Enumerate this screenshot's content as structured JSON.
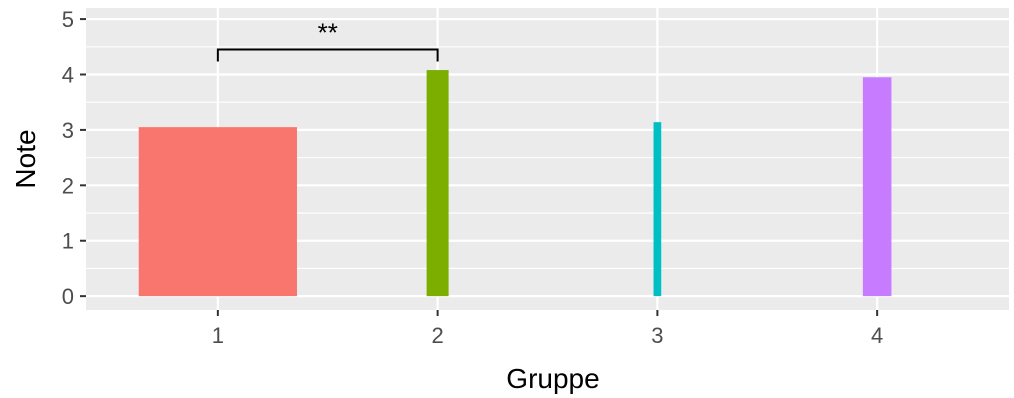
{
  "chart_data": {
    "type": "bar",
    "categories": [
      "1",
      "2",
      "3",
      "4"
    ],
    "values": [
      3.05,
      4.08,
      3.14,
      3.95
    ],
    "bar_width_fraction": [
      0.72,
      0.1,
      0.035,
      0.13
    ],
    "colors": [
      "#F8766D",
      "#7CAE00",
      "#00BFC4",
      "#C77CFF"
    ],
    "xlabel": "Gruppe",
    "ylabel": "Note",
    "yticks": [
      "0",
      "1",
      "2",
      "3",
      "4",
      "5"
    ],
    "ylim": [
      -0.25,
      5.2
    ],
    "grid": true,
    "legend": "none",
    "panel_background": "#EBEBEB",
    "grid_color": "#FFFFFF",
    "annotations": [
      {
        "type": "significance-bracket",
        "from": "1",
        "to": "2",
        "y": 4.45,
        "label": "**"
      }
    ]
  }
}
